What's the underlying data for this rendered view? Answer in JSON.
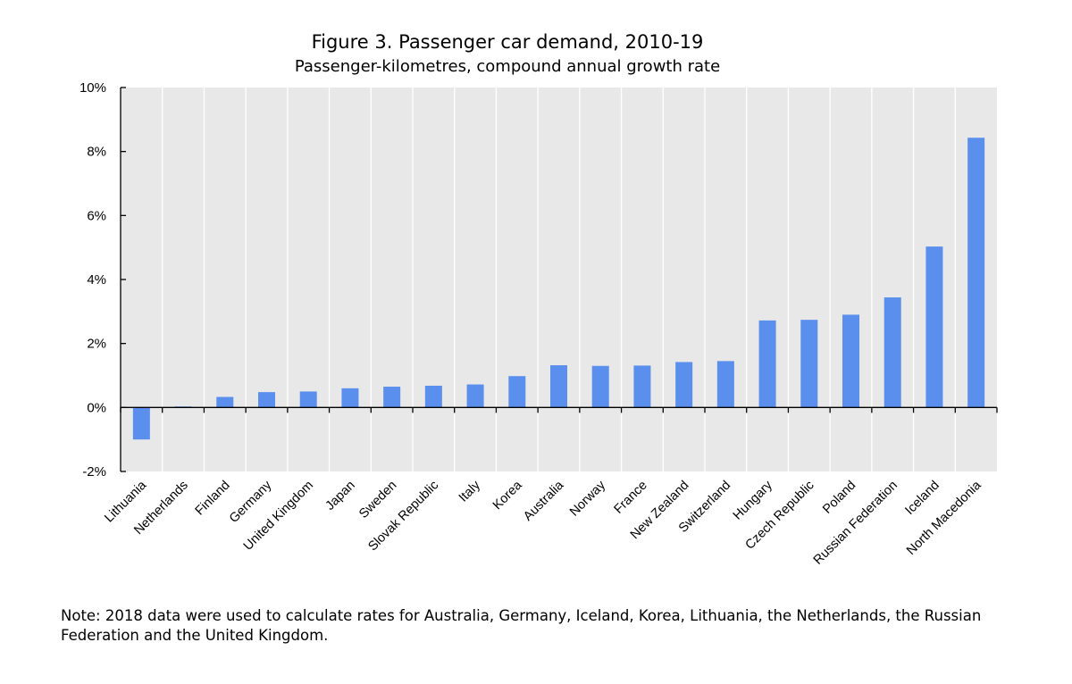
{
  "chart_data": {
    "type": "bar",
    "title": "Figure 3. Passenger car demand, 2010-19",
    "subtitle": "Passenger-kilometres, compound annual growth rate",
    "xlabel": "",
    "ylabel": "",
    "ylim": [
      -2,
      10
    ],
    "yticks": [
      10,
      8,
      6,
      4,
      2,
      0,
      -2
    ],
    "ytick_labels": [
      "10%",
      "8%",
      "6%",
      "4%",
      "2%",
      "0%",
      "-2%"
    ],
    "grid": true,
    "legend": "none",
    "bar_color": "#5b8fee",
    "plot_background": "#e8e8e8",
    "categories": [
      "Lithuania",
      "Netherlands",
      "Finland",
      "Germany",
      "United Kingdom",
      "Japan",
      "Sweden",
      "Slovak Republic",
      "Italy",
      "Korea",
      "Australia",
      "Norway",
      "France",
      "New Zealand",
      "Switzerland",
      "Hungary",
      "Czech Republic",
      "Poland",
      "Russian Federation",
      "Iceland",
      "North Macedonia"
    ],
    "values": [
      -1.0,
      0.03,
      0.33,
      0.48,
      0.5,
      0.6,
      0.65,
      0.68,
      0.72,
      0.98,
      1.32,
      1.3,
      1.31,
      1.42,
      1.45,
      2.72,
      2.74,
      2.9,
      3.44,
      5.03,
      8.43
    ]
  },
  "note": "Note: 2018 data were used to calculate rates for Australia, Germany, Iceland, Korea, Lithuania, the Netherlands, the Russian Federation and the United Kingdom."
}
